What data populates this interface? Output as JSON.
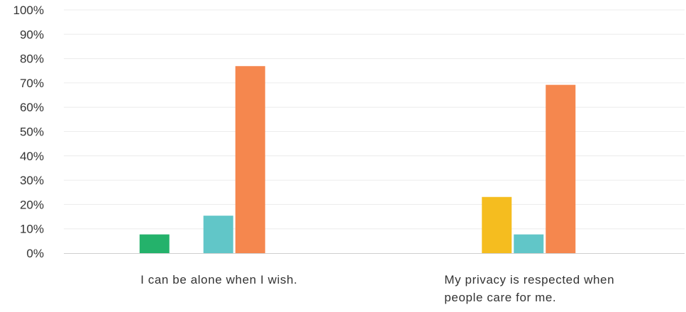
{
  "chart_data": {
    "type": "bar",
    "categories": [
      [
        "I can be alone when I wish."
      ],
      [
        "My privacy is respected when",
        "people care for me."
      ]
    ],
    "series": [
      {
        "color": "#24b26b",
        "values": [
          7.7,
          0
        ]
      },
      {
        "color": "#f5bd1f",
        "values": [
          0,
          23.1
        ]
      },
      {
        "color": "#61c6c8",
        "values": [
          15.4,
          7.7
        ]
      },
      {
        "color": "#f5874e",
        "values": [
          76.9,
          69.2
        ]
      },
      {
        "color": "#9f74c4",
        "values": [
          0,
          0
        ]
      }
    ],
    "ylim": [
      0,
      100
    ],
    "yticks": [
      "0%",
      "10%",
      "20%",
      "30%",
      "40%",
      "50%",
      "60%",
      "70%",
      "80%",
      "90%",
      "100%"
    ],
    "grid": true
  }
}
